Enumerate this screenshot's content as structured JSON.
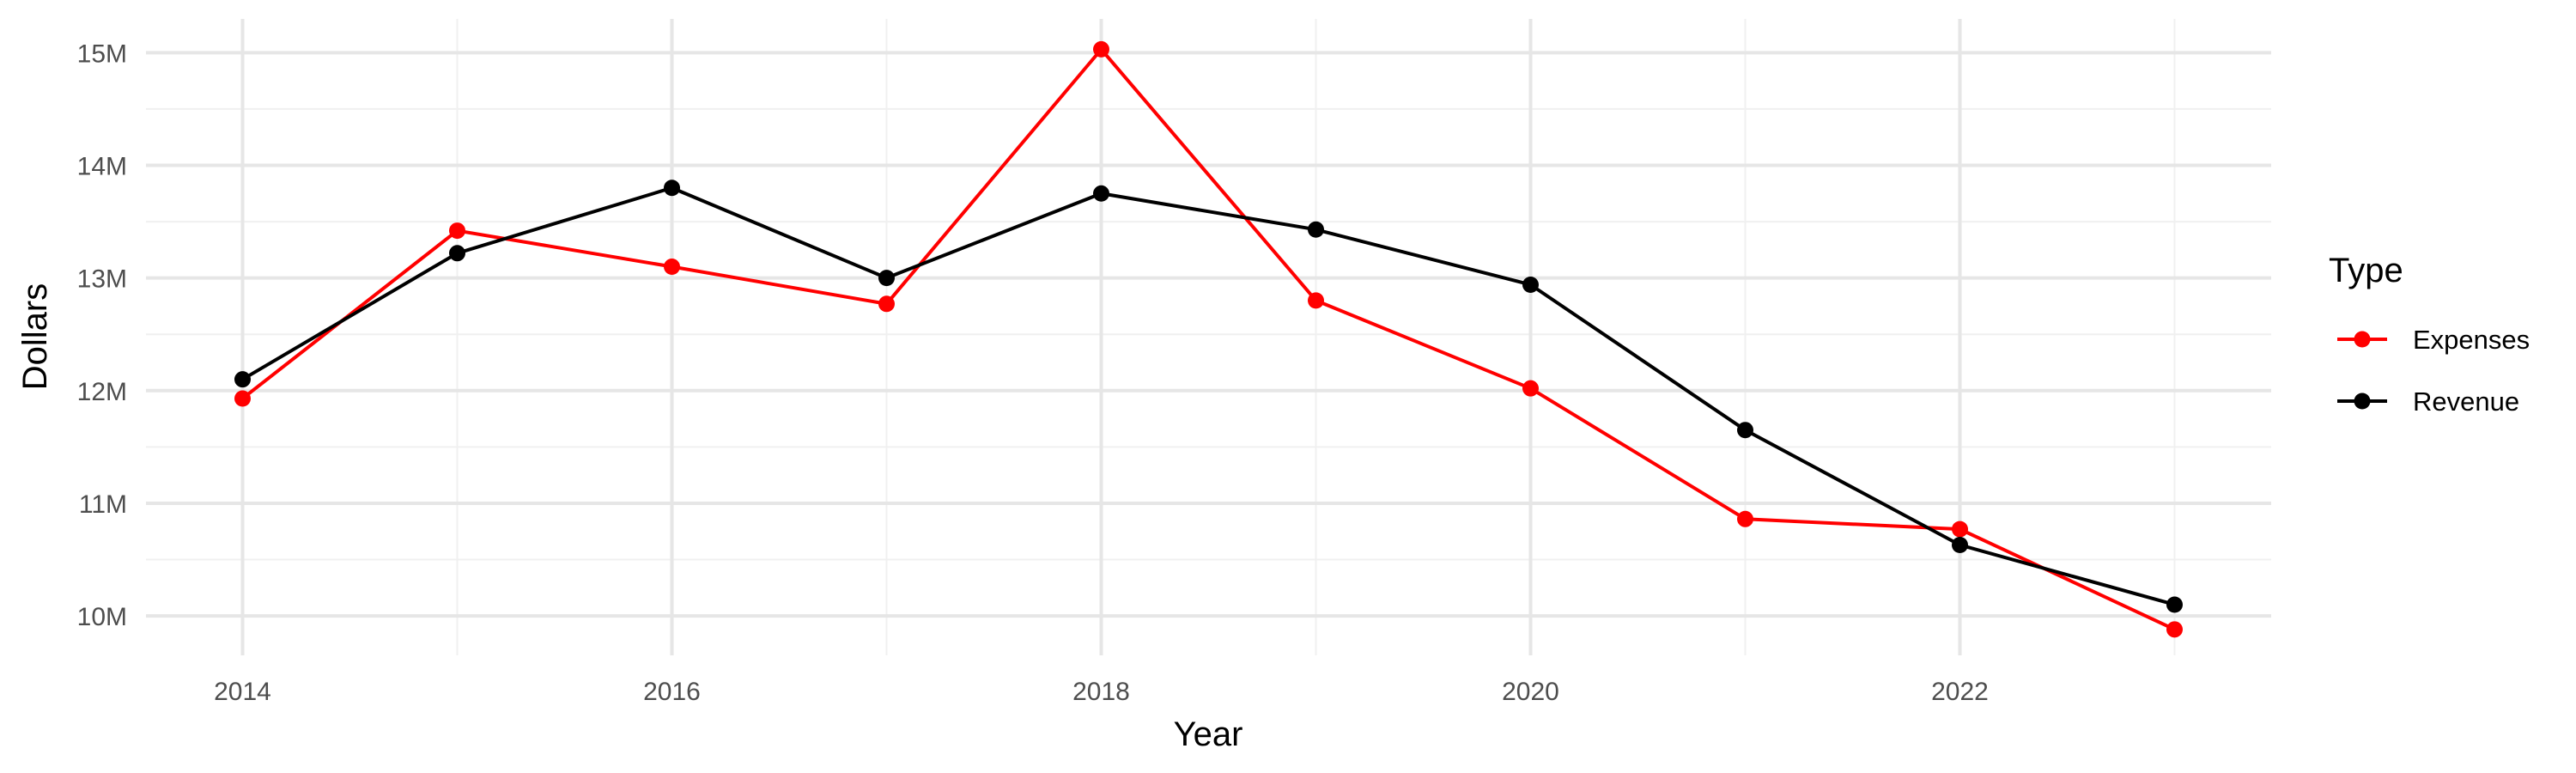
{
  "chart_data": {
    "type": "line",
    "xlabel": "Year",
    "ylabel": "Dollars",
    "x": [
      2014,
      2015,
      2016,
      2017,
      2018,
      2019,
      2020,
      2021,
      2022,
      2023
    ],
    "x_ticks": [
      2014,
      2016,
      2018,
      2020,
      2022
    ],
    "x_tick_labels": [
      "2014",
      "2016",
      "2018",
      "2020",
      "2022"
    ],
    "y_ticks": [
      10,
      11,
      12,
      13,
      14,
      15
    ],
    "y_tick_labels": [
      "10M",
      "11M",
      "12M",
      "13M",
      "14M",
      "15M"
    ],
    "y_unit": "M",
    "xlim": [
      2013.55,
      2023.45
    ],
    "ylim": [
      9.65,
      15.3
    ],
    "grid": true,
    "legend": {
      "title": "Type",
      "placement": "right"
    },
    "series": [
      {
        "name": "Expenses",
        "color": "#ff0000",
        "values": [
          11.93,
          13.42,
          13.1,
          12.77,
          15.03,
          12.8,
          12.02,
          10.86,
          10.77,
          9.88
        ]
      },
      {
        "name": "Revenue",
        "color": "#000000",
        "values": [
          12.1,
          13.22,
          13.8,
          13.0,
          13.75,
          13.43,
          12.94,
          11.65,
          10.63,
          10.1
        ]
      }
    ]
  }
}
